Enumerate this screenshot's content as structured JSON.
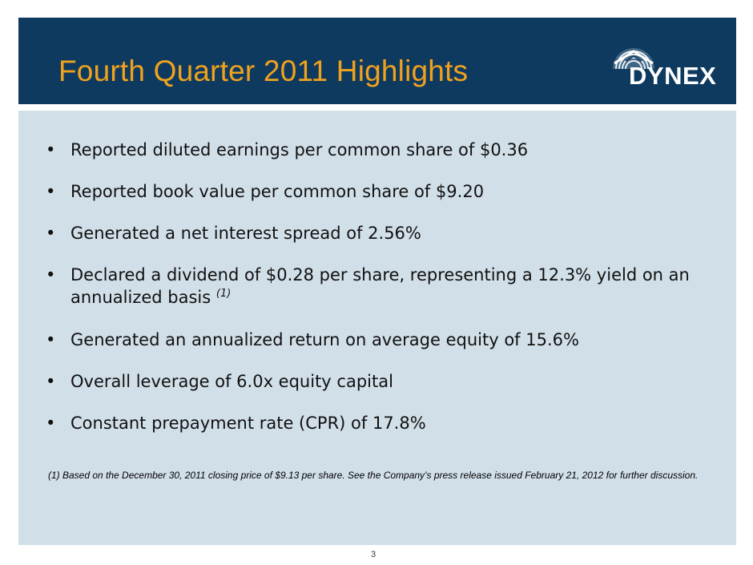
{
  "header": {
    "title": "Fourth Quarter 2011 Highlights",
    "logo_text": "DYNEX"
  },
  "colors": {
    "header_bg": "#0f3a5f",
    "title": "#f0a21e",
    "content_bg": "#d1dfe8"
  },
  "bullets": [
    {
      "text": "Reported diluted earnings per common share of $0.36"
    },
    {
      "text": "Reported book value per common share of $9.20"
    },
    {
      "text": "Generated a net interest spread of 2.56%"
    },
    {
      "text": "Declared a dividend of $0.28 per share, representing a 12.3% yield on an annualized basis ",
      "note": "(1)"
    },
    {
      "text": "Generated an annualized return on average equity of 15.6%"
    },
    {
      "text": "Overall leverage of 6.0x equity capital"
    },
    {
      "text": "Constant prepayment rate (CPR) of 17.8%"
    }
  ],
  "footnote": "(1)  Based on the December 30, 2011 closing price of $9.13 per share. See the Company’s press release issued February 21, 2012 for further discussion.",
  "page_number": "3"
}
